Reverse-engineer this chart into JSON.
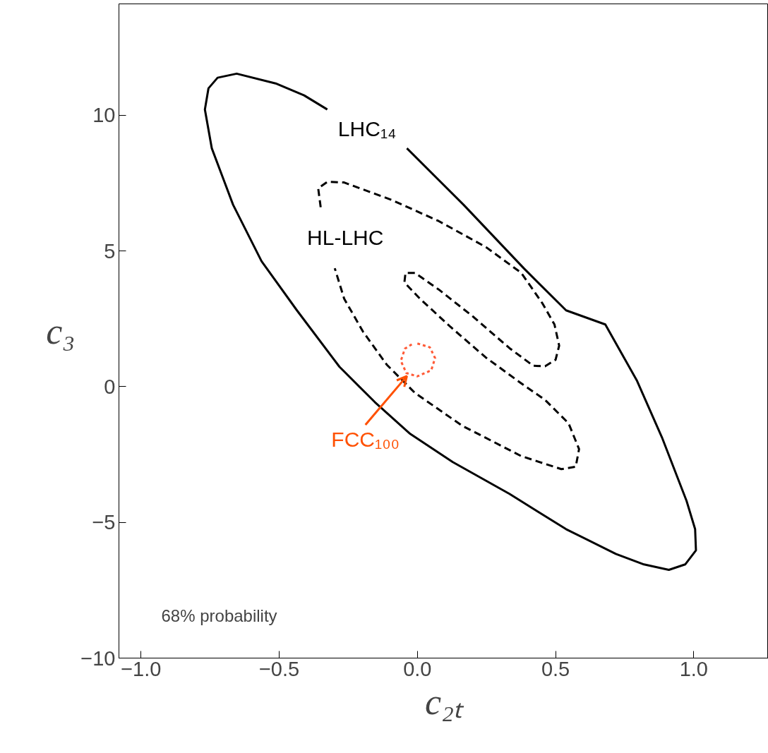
{
  "chart_data": {
    "type": "line",
    "xlabel": "c₂ₜ",
    "ylabel": "c₃",
    "xlim": [
      -1.08,
      1.27
    ],
    "ylim": [
      -10,
      14.1
    ],
    "xticks": [
      {
        "value": -1.0,
        "label": "−1.0"
      },
      {
        "value": -0.5,
        "label": "−0.5"
      },
      {
        "value": 0.0,
        "label": "0.0"
      },
      {
        "value": 0.5,
        "label": "0.5"
      },
      {
        "value": 1.0,
        "label": "1.0"
      }
    ],
    "yticks": [
      {
        "value": -10,
        "label": "−10"
      },
      {
        "value": -5,
        "label": "−5"
      },
      0,
      5,
      10
    ],
    "grid": false,
    "legend": false,
    "marker": "none",
    "series": [
      {
        "name": "LHC₁₄",
        "color": "#000000",
        "line_style": "solid",
        "x": [
          -0.038,
          0.167,
          0.385,
          0.538,
          0.68,
          0.795,
          0.885,
          0.974,
          1.005,
          1.008,
          0.969,
          0.91,
          0.82,
          0.718,
          0.538,
          0.333,
          0.128,
          -0.026,
          -0.154,
          -0.282,
          -0.436,
          -0.564,
          -0.667,
          -0.744,
          -0.769,
          -0.756,
          -0.723,
          -0.654,
          -0.513,
          -0.41,
          -0.326
        ],
        "values": [
          8.78,
          6.7,
          4.36,
          2.81,
          2.29,
          0.21,
          -1.87,
          -4.21,
          -5.25,
          -6.03,
          -6.55,
          -6.75,
          -6.55,
          -6.16,
          -5.25,
          -3.95,
          -2.78,
          -1.74,
          -0.57,
          0.73,
          2.81,
          4.62,
          6.7,
          8.78,
          10.21,
          10.99,
          11.38,
          11.53,
          11.17,
          10.73,
          10.21
        ]
      },
      {
        "name": "HL-LHC",
        "color": "#000000",
        "line_style": "dashed",
        "x": [
          -0.35,
          -0.359,
          -0.325,
          -0.265,
          -0.094,
          0.077,
          0.248,
          0.376,
          0.453,
          0.496,
          0.513,
          0.5,
          0.462,
          0.419,
          0.333,
          0.205,
          0.077,
          -0.009,
          -0.043,
          -0.047,
          0.009,
          0.12,
          0.248,
          0.376,
          0.462,
          0.547,
          0.585,
          0.573,
          0.521,
          0.376,
          0.162,
          -0.009,
          -0.111,
          -0.197,
          -0.265,
          -0.299
        ],
        "values": [
          6.61,
          7.31,
          7.55,
          7.52,
          6.88,
          6.1,
          5.14,
          4.19,
          3.06,
          2.29,
          1.51,
          0.99,
          0.75,
          0.77,
          1.42,
          2.55,
          3.58,
          4.19,
          4.19,
          3.84,
          3.24,
          2.2,
          1.07,
          0.12,
          -0.49,
          -1.35,
          -2.3,
          -2.95,
          -3.04,
          -2.56,
          -1.44,
          -0.23,
          0.81,
          2.03,
          3.24,
          4.36
        ]
      },
      {
        "color": "#ff5a36",
        "line_style": "dotted",
        "x": [
          0.0,
          0.045,
          0.064,
          0.05,
          0.0,
          -0.04,
          -0.06,
          -0.045,
          -0.02
        ],
        "values": [
          1.59,
          1.45,
          1.05,
          0.6,
          0.38,
          0.5,
          0.95,
          1.4,
          1.56
        ]
      }
    ],
    "annotations": [
      {
        "text": "FCC₁₀₀",
        "x": -0.038,
        "y": 0.39
      },
      "68% probability"
    ]
  }
}
